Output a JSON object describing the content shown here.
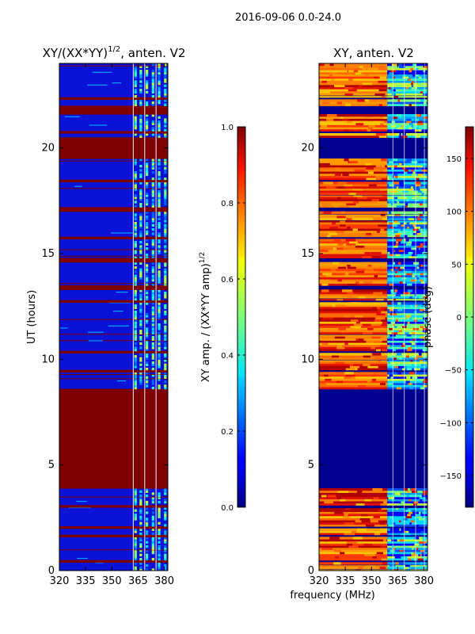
{
  "figure": {
    "suptitle": "2016-09-06 0.0-24.0",
    "shared_xlabel": "frequency (MHz)"
  },
  "chart_data": [
    {
      "type": "heatmap",
      "title_main": "XY/(XX*YY)",
      "title_sup": "1/2",
      "title_suffix": ", anten. V2",
      "xlabel": "",
      "ylabel": "UT (hours)",
      "xlim": [
        320,
        382
      ],
      "ylim": [
        0,
        24
      ],
      "x_ticks": [
        320,
        335,
        350,
        365,
        380
      ],
      "y_ticks": [
        0,
        5,
        10,
        15,
        20
      ],
      "colorbar": {
        "range": [
          0.0,
          1.0
        ],
        "ticks": [
          "0.0",
          "0.2",
          "0.4",
          "0.6",
          "0.8",
          "1.0"
        ],
        "label_main": "XY amp. / (XX*YY amp)",
        "label_sup": "1/2"
      },
      "flagged_bands_hours": [
        [
          3.9,
          8.55
        ],
        [
          19.5,
          20.5
        ],
        [
          21.55,
          22.0
        ],
        [
          16.9,
          17.1
        ],
        [
          14.55,
          14.75
        ],
        [
          13.2,
          13.4
        ],
        [
          2.95,
          3.1
        ],
        [
          1.55,
          1.65
        ],
        [
          0.35,
          0.45
        ],
        [
          22.3,
          22.4
        ],
        [
          18.3,
          18.4
        ],
        [
          15.6,
          15.7
        ],
        [
          10.2,
          10.3
        ],
        [
          9.3,
          9.4
        ],
        [
          12.6,
          12.7
        ],
        [
          1.95,
          2.05
        ],
        [
          20.7,
          20.8
        ]
      ],
      "high_value_freq_band_mhz": [
        362,
        382
      ]
    },
    {
      "type": "heatmap",
      "title_main": "XY, anten. V2",
      "xlabel": "frequency (MHz)",
      "ylabel": "",
      "xlim": [
        320,
        382
      ],
      "ylim": [
        0,
        24
      ],
      "x_ticks": [
        320,
        335,
        350,
        365,
        380
      ],
      "y_ticks": [
        0,
        5,
        10,
        15,
        20
      ],
      "colorbar": {
        "range": [
          -180,
          180
        ],
        "ticks": [
          "-150",
          "-100",
          "-50",
          "0",
          "50",
          "100",
          "150"
        ],
        "label": "phase (deg)"
      },
      "blank_bands_hours": [
        [
          3.9,
          8.55
        ],
        [
          19.5,
          20.5
        ],
        [
          21.55,
          22.0
        ],
        [
          16.9,
          17.1
        ],
        [
          14.55,
          14.75
        ],
        [
          13.2,
          13.4
        ],
        [
          2.95,
          3.1
        ],
        [
          1.55,
          1.65
        ],
        [
          0.35,
          0.45
        ],
        [
          22.3,
          22.4
        ],
        [
          18.3,
          18.4
        ],
        [
          15.6,
          15.7
        ],
        [
          10.2,
          10.3
        ],
        [
          9.3,
          9.4
        ],
        [
          12.6,
          12.7
        ],
        [
          1.95,
          2.05
        ],
        [
          20.7,
          20.8
        ]
      ],
      "phase_transition_freq_mhz": 359
    }
  ]
}
